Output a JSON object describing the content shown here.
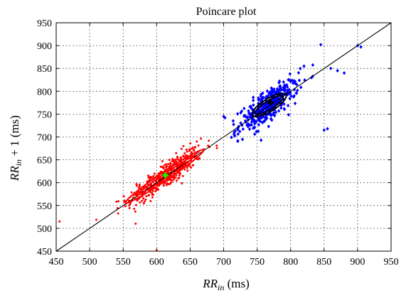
{
  "chart_data": {
    "type": "scatter",
    "title": "Poincare plot",
    "xlabel": {
      "main": "RR",
      "sub": "in",
      "suffix": "  (ms)"
    },
    "ylabel": {
      "main": "RR",
      "sub": "in",
      "suffix": " + 1  (ms)"
    },
    "xlim": [
      450,
      950
    ],
    "ylim": [
      450,
      950
    ],
    "xticks": [
      450,
      500,
      550,
      600,
      650,
      700,
      750,
      800,
      850,
      900,
      950
    ],
    "yticks": [
      450,
      500,
      550,
      600,
      650,
      700,
      750,
      800,
      850,
      900,
      950
    ],
    "grid": true,
    "identity_line": {
      "from": [
        450,
        450
      ],
      "to": [
        950,
        950
      ]
    },
    "series": [
      {
        "color": "#ff0000",
        "marker": "dot",
        "generator": {
          "count": 420,
          "x_mean": 612,
          "x_sd": 28,
          "minor_sd": 12,
          "x_range": [
            510,
            690
          ]
        },
        "extra_points": [
          [
            455,
            515
          ],
          [
            600,
            452
          ],
          [
            640,
            680
          ],
          [
            660,
            690
          ]
        ],
        "ellipses": [
          {
            "center": [
              612,
              614
            ],
            "semi_major": 82,
            "semi_minor": 8,
            "angle_deg": 45
          },
          {
            "center": [
              612,
              614
            ],
            "semi_major": 60,
            "semi_minor": 4,
            "angle_deg": 45
          }
        ],
        "centroid": {
          "point": [
            613,
            616
          ],
          "color": "#00ff00"
        }
      },
      {
        "color": "#0000ff",
        "marker": "diamond",
        "generator": {
          "count": 360,
          "x_mean": 767,
          "x_sd": 22,
          "minor_sd": 14,
          "x_range": [
            695,
            910
          ]
        },
        "extra_points": [
          [
            845,
            902
          ],
          [
            900,
            900
          ],
          [
            905,
            897
          ],
          [
            850,
            715
          ],
          [
            855,
            718
          ],
          [
            700,
            745
          ],
          [
            702,
            742
          ],
          [
            880,
            840
          ],
          [
            870,
            845
          ],
          [
            860,
            850
          ],
          [
            820,
            855
          ]
        ],
        "ellipses": [
          {
            "center": [
              768,
              770
            ],
            "semi_major": 34,
            "semi_minor": 12,
            "angle_deg": 45
          },
          {
            "center": [
              768,
              770
            ],
            "semi_major": 28,
            "semi_minor": 8,
            "angle_deg": 45
          }
        ],
        "centroid": {
          "point": [
            770,
            775
          ],
          "color": "#000000"
        }
      }
    ]
  }
}
